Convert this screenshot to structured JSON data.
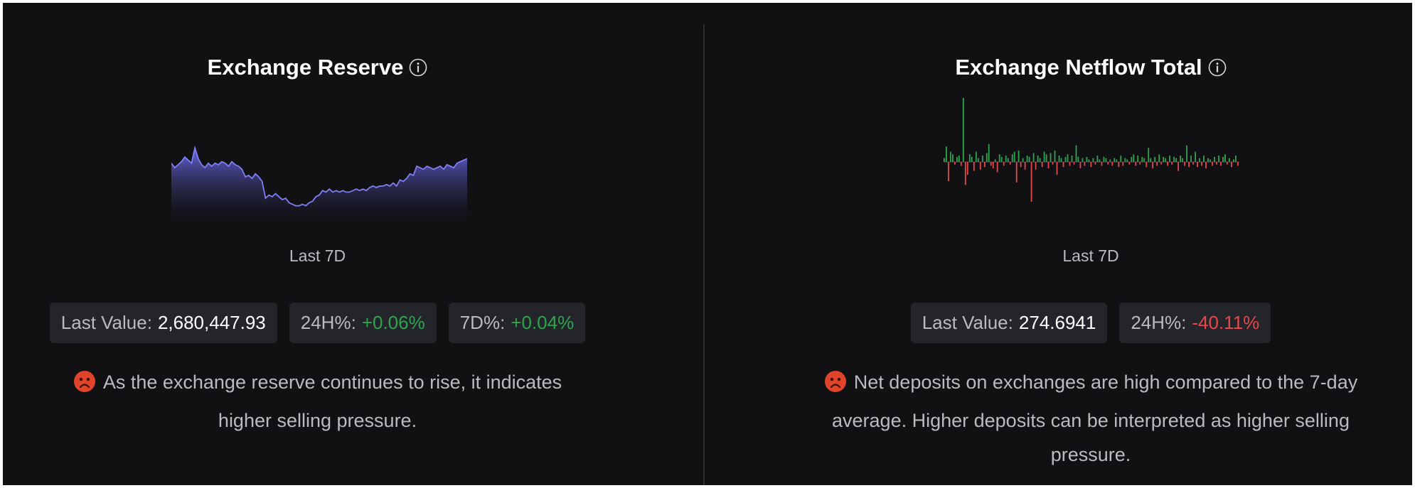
{
  "colors": {
    "positive": "#2ea44f",
    "negative": "#e5484d",
    "reserve_line": "#7f7ef5",
    "netflow_up": "#2ea44f",
    "netflow_down": "#e5484d"
  },
  "reserve": {
    "title": "Exchange Reserve",
    "info_icon": "info-circle-icon",
    "period": "Last 7D",
    "last_value_label": "Last Value:",
    "last_value": "2,680,447.93",
    "h24_label": "24H%:",
    "h24_value": "+0.06%",
    "d7_label": "7D%:",
    "d7_value": "+0.04%",
    "mood_icon": "sad-face-icon",
    "note": "As the exchange reserve continues to rise, it indicates higher selling pressure.",
    "chart_data": {
      "type": "area",
      "series": [
        {
          "values": [
            70,
            67,
            69,
            71,
            74,
            72,
            70,
            80,
            73,
            69,
            67,
            70,
            68,
            70,
            69,
            71,
            70,
            68,
            71,
            69,
            68,
            66,
            61,
            62,
            60,
            63,
            61,
            58,
            47,
            49,
            48,
            50,
            48,
            46,
            47,
            44,
            43,
            42,
            42,
            43,
            42,
            44,
            45,
            48,
            49,
            52,
            51,
            53,
            51,
            52,
            51,
            52,
            51,
            51,
            52,
            53,
            52,
            53,
            52,
            54,
            55,
            54,
            55,
            55,
            56,
            55,
            57,
            55,
            59,
            58,
            60,
            63,
            62,
            68,
            67,
            66,
            68,
            67,
            66,
            67,
            68,
            66,
            69,
            68,
            67,
            70,
            71,
            72,
            73
          ]
        }
      ]
    }
  },
  "netflow": {
    "title": "Exchange Netflow Total",
    "info_icon": "info-circle-icon",
    "period": "Last 7D",
    "last_value_label": "Last Value:",
    "last_value": "274.6941",
    "h24_label": "24H%:",
    "h24_value": "-40.11%",
    "mood_icon": "sad-face-icon",
    "note": "Net deposits on exchanges are high compared to the 7-day average. Higher deposits can be interpreted as higher selling pressure.",
    "chart_data": {
      "type": "bar",
      "series": [
        {
          "values": [
            3,
            12,
            -15,
            8,
            6,
            -2,
            4,
            5,
            -3,
            50,
            -18,
            -10,
            6,
            4,
            -7,
            8,
            3,
            -6,
            5,
            -4,
            7,
            14,
            -3,
            -5,
            2,
            -8,
            6,
            4,
            -3,
            5,
            3,
            -2,
            6,
            8,
            -16,
            9,
            -4,
            3,
            -6,
            5,
            4,
            -33,
            7,
            -6,
            5,
            3,
            -4,
            8,
            6,
            -5,
            7,
            -2,
            9,
            -10,
            5,
            3,
            -4,
            4,
            6,
            -3,
            5,
            -2,
            13,
            4,
            -5,
            3,
            -3,
            4,
            2,
            -4,
            3,
            -2,
            5,
            2,
            -3,
            4,
            3,
            -2,
            2,
            -3,
            3,
            2,
            -4,
            5,
            -3,
            3,
            2,
            -2,
            4,
            6,
            -3,
            5,
            -2,
            4,
            3,
            -4,
            11,
            3,
            -5,
            4,
            -3,
            6,
            -2,
            4,
            3,
            -3,
            5,
            -2,
            4,
            3,
            -7,
            5,
            3,
            -3,
            13,
            -4,
            5,
            -2,
            8,
            -4,
            3,
            -3,
            5,
            -5,
            3,
            2,
            -3,
            4,
            -2,
            5,
            -3,
            4,
            6,
            -2,
            3,
            -4,
            2,
            5,
            -3
          ]
        }
      ]
    }
  }
}
